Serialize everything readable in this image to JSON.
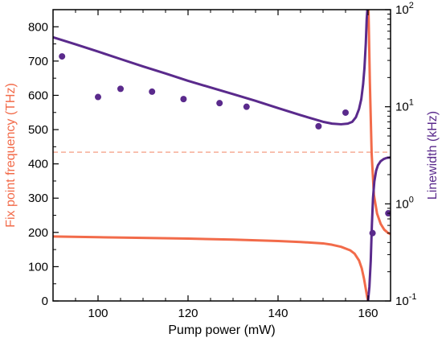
{
  "chart_data": {
    "type": "line",
    "xlabel": "Pump power (mW)",
    "ylabel_left": "Fix point frequency (THz)",
    "ylabel_right": "Linewidth (kHz)",
    "xlim": [
      90,
      165
    ],
    "ylim_left": [
      0,
      850
    ],
    "ylim_right": [
      0.1,
      100
    ],
    "right_scale": "log",
    "x_ticks": [
      100,
      120,
      140,
      160
    ],
    "y_ticks_left": [
      0,
      100,
      200,
      300,
      400,
      500,
      600,
      700,
      800
    ],
    "y_ticks_right": [
      {
        "value": 0.1,
        "label": "10",
        "sup": "-1"
      },
      {
        "value": 1,
        "label": "10",
        "sup": "0"
      },
      {
        "value": 10,
        "label": "10",
        "sup": "1"
      },
      {
        "value": 100,
        "label": "10",
        "sup": "2"
      }
    ],
    "colors": {
      "orange": "#f26b4a",
      "purple": "#5a2a8c",
      "dashed": "#f6ad98"
    },
    "series": [
      {
        "axis": "left",
        "style": "line",
        "color": "#f26b4a",
        "x": [
          90,
          100,
          110,
          120,
          130,
          140,
          145,
          150,
          152,
          154,
          156,
          157,
          158,
          158.6,
          159.1,
          159.5,
          159.8,
          160.0
        ],
        "y": [
          188,
          186,
          184,
          182,
          179,
          175,
          172,
          168,
          164,
          158,
          148,
          138,
          118,
          95,
          65,
          35,
          12,
          0
        ]
      },
      {
        "axis": "left",
        "style": "line",
        "color": "#f26b4a",
        "x": [
          160.1,
          160.4,
          160.8,
          161.3,
          162.0,
          162.8,
          163.6,
          164.5,
          165
        ],
        "y": [
          850,
          640,
          430,
          310,
          255,
          225,
          208,
          198,
          195
        ]
      },
      {
        "axis": "left",
        "style": "dashed",
        "color": "#f6ad98",
        "x": [
          90,
          165
        ],
        "y": [
          434,
          434
        ]
      },
      {
        "axis": "right",
        "style": "line",
        "color": "#5a2a8c",
        "x": [
          90,
          95,
          100,
          105,
          110,
          115,
          120,
          125,
          130,
          135,
          140,
          145,
          150,
          152,
          154,
          155.5,
          156.5,
          157.3,
          158.0,
          158.5,
          158.9,
          159.2,
          159.5,
          159.7,
          159.85
        ],
        "y": [
          52,
          44,
          37,
          31,
          26,
          22,
          18.5,
          15.8,
          13.5,
          11.5,
          9.7,
          8.2,
          7.0,
          6.7,
          6.6,
          6.7,
          7.0,
          7.8,
          9.5,
          12,
          17,
          25,
          45,
          80,
          100
        ]
      },
      {
        "axis": "right",
        "style": "line",
        "color": "#5a2a8c",
        "x": [
          160.0,
          160.3,
          160.6,
          160.85,
          161.1,
          161.4,
          161.8,
          162.2,
          162.8,
          163.5,
          164.2,
          165
        ],
        "y": [
          0.1,
          0.14,
          0.26,
          0.6,
          1.15,
          1.7,
          2.2,
          2.5,
          2.75,
          2.9,
          2.98,
          3.0
        ]
      },
      {
        "axis": "right",
        "style": "points",
        "color": "#5a2a8c",
        "x": [
          92,
          100,
          105,
          112,
          119,
          127,
          133,
          149,
          155,
          161,
          164.5
        ],
        "y": [
          33,
          12.6,
          15.3,
          14.3,
          12.0,
          10.9,
          10.0,
          6.3,
          8.7,
          0.5,
          0.8
        ]
      }
    ]
  }
}
